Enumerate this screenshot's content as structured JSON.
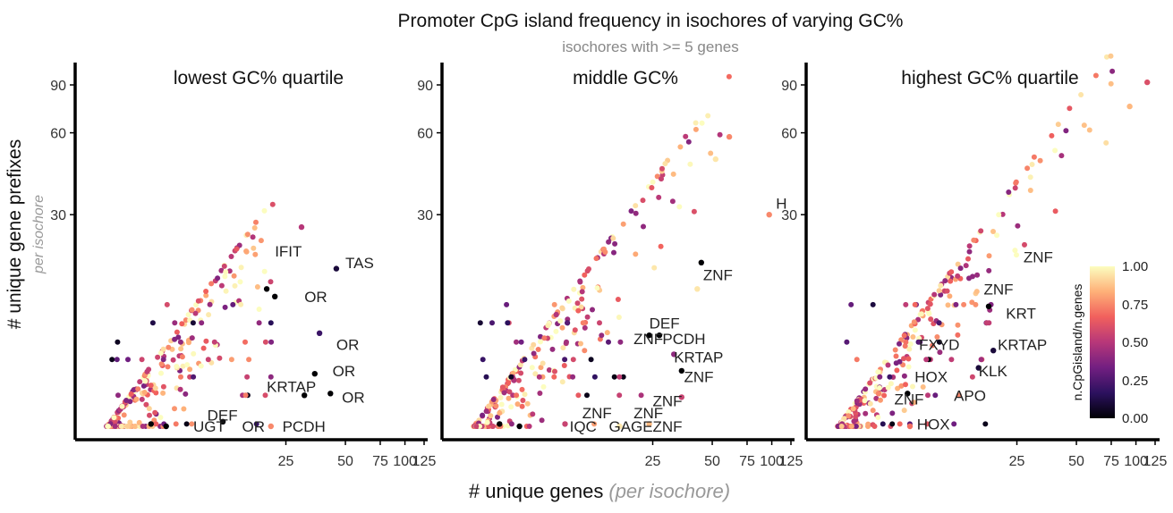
{
  "title": "Promoter CpG island frequency in isochores of varying GC%",
  "subtitle": "isochores with >= 5 genes",
  "ylabel": "# unique gene prefixes",
  "ylabel_sub": "per isochore",
  "xlabel": "# unique genes",
  "xlabel_sub": "(per isochore)",
  "colorbar": {
    "title": "n.CpGisland/n.genes",
    "ticks": [
      "1.00",
      "0.75",
      "0.50",
      "0.25",
      "0.00"
    ],
    "colors": [
      "#000004",
      "#2c115f",
      "#721f81",
      "#b73779",
      "#f1605d",
      "#feb078",
      "#fcfdbf"
    ]
  },
  "chart_data": [
    {
      "type": "scatter",
      "title": "lowest GC% quartile",
      "x_scale": "log",
      "y_scale": "log",
      "x_ticks": [
        "25",
        "50",
        "75",
        "100",
        "125"
      ],
      "y_ticks": [
        "30",
        "60",
        "90"
      ],
      "labels": [
        {
          "text": "IFIT",
          "x": 22,
          "y": 22
        },
        {
          "text": "TAS",
          "x": 50,
          "y": 20
        },
        {
          "text": "OR",
          "x": 31,
          "y": 15
        },
        {
          "text": "OR",
          "x": 45,
          "y": 10
        },
        {
          "text": "OR",
          "x": 43,
          "y": 8
        },
        {
          "text": "KRTAP",
          "x": 20,
          "y": 7
        },
        {
          "text": "OR",
          "x": 48,
          "y": 6.4
        },
        {
          "text": "DEF",
          "x": 10,
          "y": 5.5
        },
        {
          "text": "UGT",
          "x": 8.5,
          "y": 5
        },
        {
          "text": "OR",
          "x": 15,
          "y": 5
        },
        {
          "text": "PCDH",
          "x": 24,
          "y": 5
        }
      ],
      "points": [
        {
          "x": 5.2,
          "y": 5.1,
          "c": 0.0
        },
        {
          "x": 6.2,
          "y": 5.0,
          "c": 0.0
        },
        {
          "x": 12,
          "y": 5.2,
          "c": 0.0
        },
        {
          "x": 21,
          "y": 5.0,
          "c": 0.75
        },
        {
          "x": 20,
          "y": 16,
          "c": 0.0
        },
        {
          "x": 22,
          "y": 15,
          "c": 0.0
        },
        {
          "x": 37,
          "y": 11,
          "c": 0.2
        },
        {
          "x": 35,
          "y": 7.8,
          "c": 0.0
        },
        {
          "x": 31,
          "y": 6.5,
          "c": 0.0
        },
        {
          "x": 42,
          "y": 6.6,
          "c": 0.0
        },
        {
          "x": 45,
          "y": 19,
          "c": 0.1
        },
        {
          "x": 30,
          "y": 27,
          "c": 0.5
        }
      ]
    },
    {
      "type": "scatter",
      "title": "middle GC%",
      "x_scale": "log",
      "y_scale": "log",
      "x_ticks": [
        "25",
        "50",
        "75",
        "100",
        "125"
      ],
      "y_ticks": [
        "30",
        "60",
        "90"
      ],
      "labels": [
        {
          "text": "H",
          "x": 105,
          "y": 33
        },
        {
          "text": "ZNF",
          "x": 45,
          "y": 18
        },
        {
          "text": "DEF",
          "x": 24,
          "y": 12
        },
        {
          "text": "ZNF",
          "x": 20,
          "y": 10.5
        },
        {
          "text": "PCDH",
          "x": 28,
          "y": 10.5
        },
        {
          "text": "KRTAP",
          "x": 32,
          "y": 9
        },
        {
          "text": "ZNF",
          "x": 36,
          "y": 7.6
        },
        {
          "text": "ZNF",
          "x": 25,
          "y": 6.2
        },
        {
          "text": "ZNF",
          "x": 11,
          "y": 5.6
        },
        {
          "text": "ZNF",
          "x": 20,
          "y": 5.6
        },
        {
          "text": "IQC",
          "x": 9.5,
          "y": 5
        },
        {
          "text": "GAGE",
          "x": 15,
          "y": 5
        },
        {
          "text": "ZNF",
          "x": 25,
          "y": 5
        }
      ],
      "points": [
        {
          "x": 97,
          "y": 30,
          "c": 0.75
        },
        {
          "x": 44,
          "y": 20,
          "c": 0.0
        },
        {
          "x": 42,
          "y": 16,
          "c": 0.95
        },
        {
          "x": 24,
          "y": 10.8,
          "c": 0.0
        },
        {
          "x": 27,
          "y": 10.8,
          "c": 0.0
        },
        {
          "x": 32,
          "y": 9.2,
          "c": 0.4
        },
        {
          "x": 35,
          "y": 8,
          "c": 0.0
        },
        {
          "x": 35,
          "y": 6.4,
          "c": 0.55
        },
        {
          "x": 24,
          "y": 5.1,
          "c": 0.85
        },
        {
          "x": 4.2,
          "y": 5.1,
          "c": 0.0
        },
        {
          "x": 5.3,
          "y": 5.0,
          "c": 0.0
        },
        {
          "x": 9,
          "y": 5.1,
          "c": 0.55
        },
        {
          "x": 17,
          "y": 5.0,
          "c": 0.95
        },
        {
          "x": 61,
          "y": 58,
          "c": 0.75
        },
        {
          "x": 52,
          "y": 48,
          "c": 0.95
        }
      ]
    },
    {
      "type": "scatter",
      "title": "highest GC% quartile",
      "x_scale": "log",
      "y_scale": "log",
      "x_ticks": [
        "25",
        "50",
        "75",
        "100",
        "125"
      ],
      "y_ticks": [
        "30",
        "60",
        "90"
      ],
      "labels": [
        {
          "text": "ZNF",
          "x": 27,
          "y": 21
        },
        {
          "text": "ZNF",
          "x": 17,
          "y": 16
        },
        {
          "text": "KRT",
          "x": 22,
          "y": 13
        },
        {
          "text": "FXYD",
          "x": 8,
          "y": 10
        },
        {
          "text": "KRTAP",
          "x": 20,
          "y": 10
        },
        {
          "text": "HOX",
          "x": 7.6,
          "y": 7.6
        },
        {
          "text": "KLK",
          "x": 16,
          "y": 8
        },
        {
          "text": "ZNF",
          "x": 6,
          "y": 6.3
        },
        {
          "text": "APO",
          "x": 12,
          "y": 6.5
        },
        {
          "text": "HOX",
          "x": 7.8,
          "y": 5.1
        }
      ],
      "points": [
        {
          "x": 114,
          "y": 92,
          "c": 0.6
        },
        {
          "x": 93,
          "y": 75,
          "c": 0.85
        },
        {
          "x": 18,
          "y": 13.8,
          "c": 0.0
        },
        {
          "x": 19,
          "y": 9.5,
          "c": 0.1
        },
        {
          "x": 16,
          "y": 8.2,
          "c": 0.1
        },
        {
          "x": 5,
          "y": 6.6,
          "c": 0.75
        },
        {
          "x": 7,
          "y": 6.6,
          "c": 0.0
        },
        {
          "x": 7.2,
          "y": 5.0,
          "c": 0.7
        }
      ]
    }
  ]
}
